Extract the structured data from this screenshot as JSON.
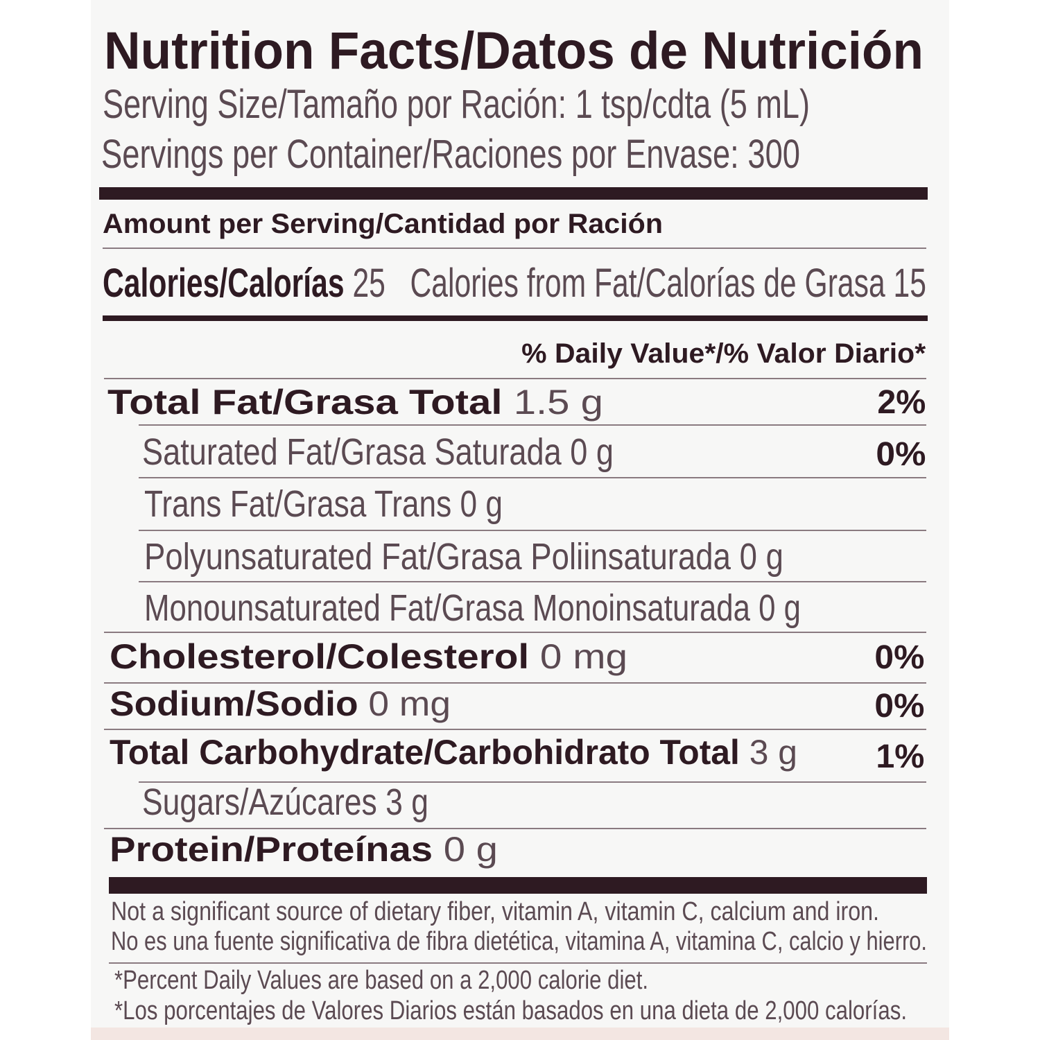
{
  "title": "Nutrition Facts/Datos de Nutrición",
  "serving_size": "Serving Size/Tamaño por Ración: 1 tsp/cdta (5 mL)",
  "servings_per_container": "Servings per Container/Raciones por Envase: 300",
  "amount_per_serving": "Amount per Serving/Cantidad por Ración",
  "calories": {
    "label": "Calories/Calorías",
    "value": "25",
    "from_fat": "Calories from Fat/Calorías de Grasa 15"
  },
  "daily_value_header": "% Daily Value*/% Valor Diario*",
  "nutrients": [
    {
      "label": "Total Fat/Grasa Total",
      "amount": "1.5 g",
      "dv": "2%"
    },
    {
      "label": "Saturated Fat/Grasa Saturada 0 g",
      "dv": "0%"
    },
    {
      "label": "Trans Fat/Grasa Trans 0 g"
    },
    {
      "label": "Polyunsaturated Fat/Grasa Poliinsaturada 0 g"
    },
    {
      "label": "Monounsaturated Fat/Grasa Monoinsaturada 0 g"
    },
    {
      "label": "Cholesterol/Colesterol",
      "amount": "0 mg",
      "dv": "0%"
    },
    {
      "label": "Sodium/Sodio",
      "amount": "0 mg",
      "dv": "0%"
    },
    {
      "label": "Total Carbohydrate/Carbohidrato Total",
      "amount": "3 g",
      "dv": "1%"
    },
    {
      "label": "Sugars/Azúcares 3 g"
    },
    {
      "label": "Protein/Proteínas",
      "amount": "0 g"
    }
  ],
  "footnotes": [
    "Not a significant source of dietary fiber, vitamin A, vitamin C, calcium and iron.",
    "No es una fuente significativa de fibra dietética, vitamina A, vitamina C, calcio y hierro.",
    "*Percent Daily Values are based on a 2,000 calorie diet.",
    "*Los porcentajes de Valores Diarios están basados en una dieta de 2,000 calorías."
  ]
}
